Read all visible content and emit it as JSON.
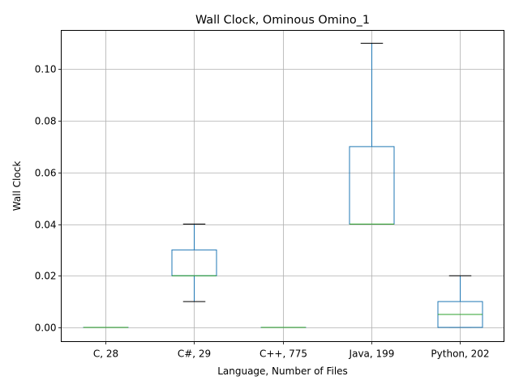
{
  "chart_data": {
    "type": "box",
    "title": "Wall Clock, Ominous Omino_1",
    "xlabel": "Language, Number of Files",
    "ylabel": "Wall Clock",
    "ylim": [
      -0.0055,
      0.115
    ],
    "yticks": [
      0.0,
      0.02,
      0.04,
      0.06,
      0.08,
      0.1
    ],
    "ytick_labels": [
      "0.00",
      "0.02",
      "0.04",
      "0.06",
      "0.08",
      "0.10"
    ],
    "grid": true,
    "colors": {
      "box": "#1f77b4",
      "median": "#2ca02c",
      "cap": "#000000",
      "grid": "#b0b0b0"
    },
    "categories": [
      "C, 28",
      "C#, 29",
      "C++, 775",
      "Java, 199",
      "Python, 202"
    ],
    "boxes": [
      {
        "whislo": 0.0,
        "q1": 0.0,
        "med": 0.0,
        "q3": 0.0,
        "whishi": 0.0
      },
      {
        "whislo": 0.01,
        "q1": 0.02,
        "med": 0.02,
        "q3": 0.03,
        "whishi": 0.04
      },
      {
        "whislo": 0.0,
        "q1": 0.0,
        "med": 0.0,
        "q3": 0.0,
        "whishi": 0.0
      },
      {
        "whislo": 0.04,
        "q1": 0.04,
        "med": 0.04,
        "q3": 0.07,
        "whishi": 0.11
      },
      {
        "whislo": 0.0,
        "q1": 0.0,
        "med": 0.005,
        "q3": 0.01,
        "whishi": 0.02
      }
    ]
  }
}
